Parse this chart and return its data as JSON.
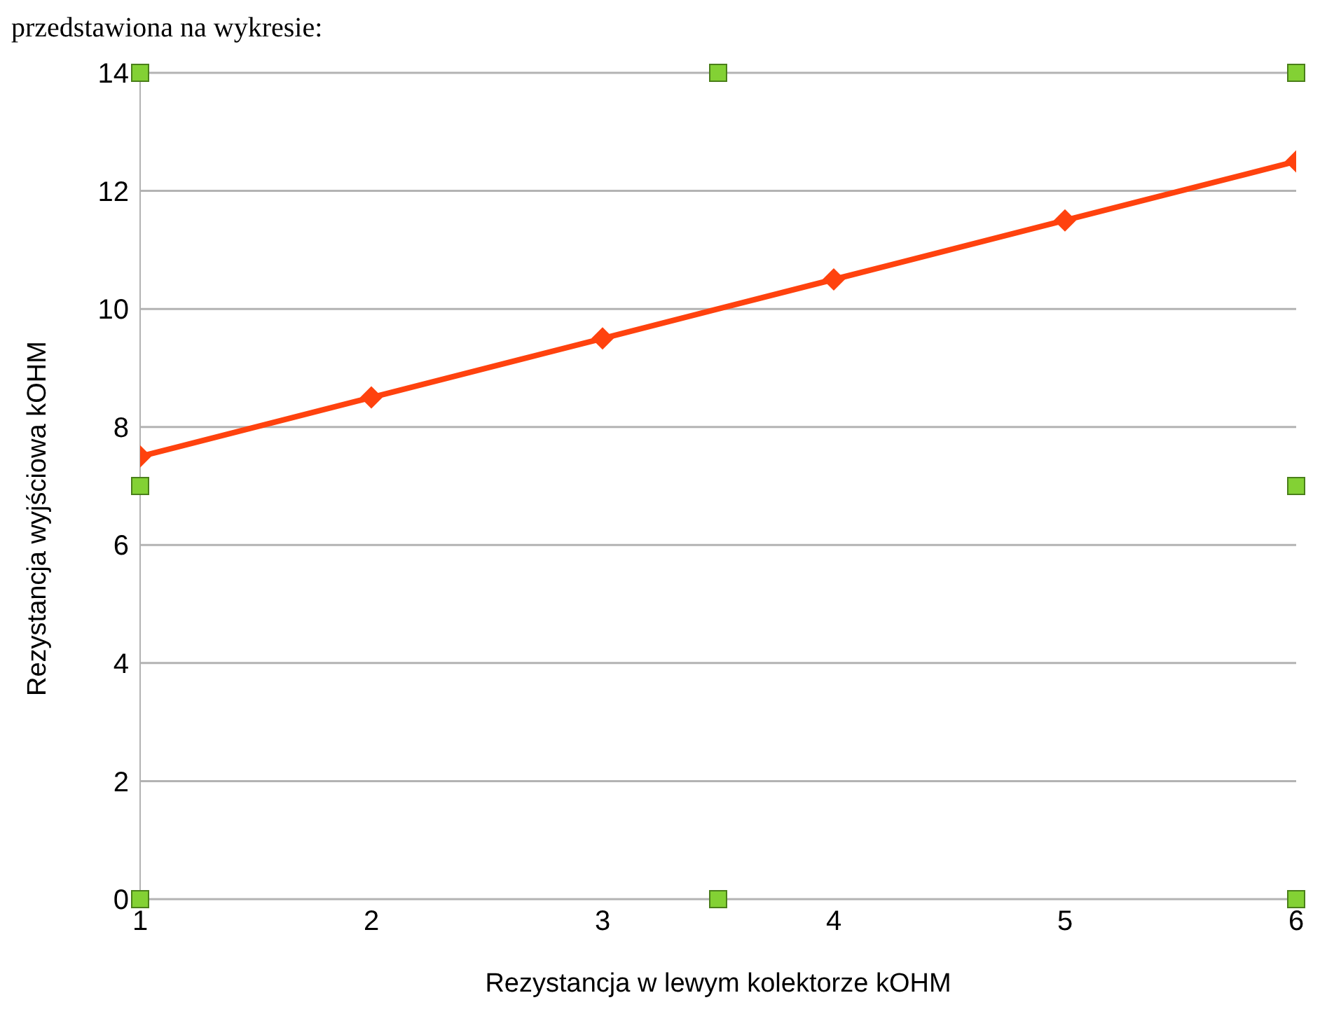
{
  "chart_data": {
    "type": "line",
    "annotations": [
      "przedstawiona na wykresie:"
    ],
    "xlabel": "Rezystancja w lewym kolektorze kOHM",
    "ylabel": "Rezystancja wyjściowa kOHM",
    "x": [
      1,
      2,
      3,
      4,
      5,
      6
    ],
    "series": [
      {
        "color": "#ff420e",
        "values": [
          7.5,
          8.5,
          9.5,
          10.5,
          11.5,
          12.5
        ]
      }
    ],
    "xlim": [
      1,
      6
    ],
    "xticks": [
      1,
      2,
      3,
      4,
      5,
      6
    ],
    "ylim": [
      0,
      14
    ],
    "yticks": [
      0,
      2,
      4,
      6,
      8,
      10,
      12,
      14
    ],
    "grid": "y",
    "legend": false,
    "marker": "diamond",
    "line_style": "solid"
  }
}
